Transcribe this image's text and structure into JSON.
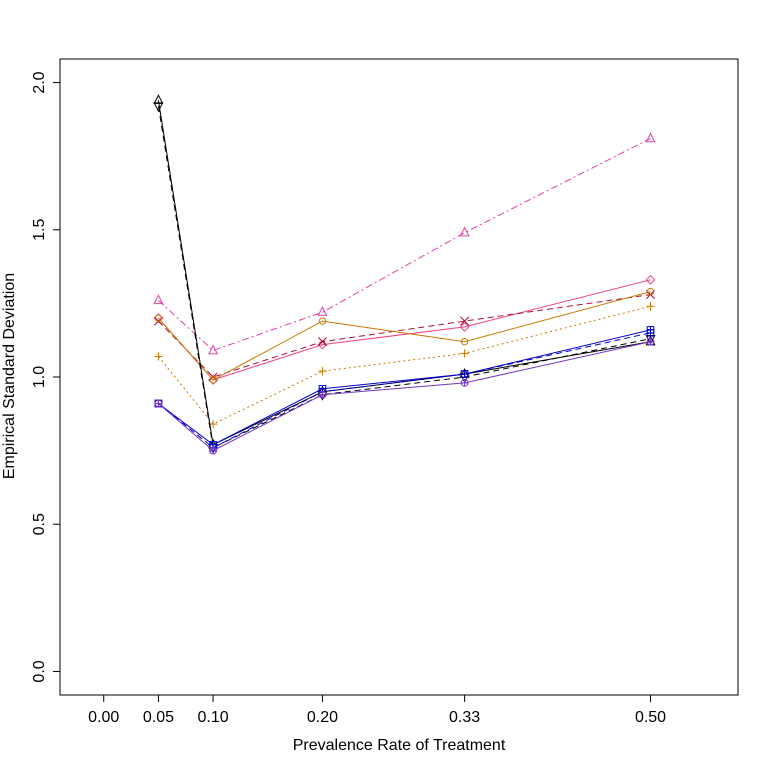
{
  "chart_data": {
    "type": "line",
    "title": "",
    "xlabel": "Prevalence Rate of Treatment",
    "ylabel": "Empirical Standard Deviation",
    "xlim": [
      -0.04,
      0.58
    ],
    "ylim": [
      -0.08,
      2.08
    ],
    "x_ticks": [
      0.0,
      0.05,
      0.1,
      0.2,
      0.33,
      0.5
    ],
    "x_tick_labels": [
      "0.00",
      "0.05",
      "0.10",
      "0.20",
      "0.33",
      "0.50"
    ],
    "y_ticks": [
      0.0,
      0.5,
      1.0,
      1.5,
      2.0
    ],
    "y_tick_labels": [
      "0.0",
      "0.5",
      "1.0",
      "1.5",
      "2.0"
    ],
    "x": [
      0.05,
      0.1,
      0.2,
      0.33,
      0.5
    ],
    "series": [
      {
        "name": "magenta-triangle",
        "color": "#dd44aa",
        "dash": "7,3,2,3",
        "marker": "triangle",
        "values": [
          1.26,
          1.09,
          1.22,
          1.49,
          1.81
        ]
      },
      {
        "name": "pink-diamond",
        "color": "#ee4488",
        "dash": "",
        "marker": "diamond",
        "values": [
          1.2,
          0.99,
          1.11,
          1.17,
          1.33
        ]
      },
      {
        "name": "darkred-x",
        "color": "#aa1133",
        "dash": "6,4",
        "marker": "x",
        "values": [
          1.19,
          1.0,
          1.12,
          1.19,
          1.28
        ]
      },
      {
        "name": "orange-circle",
        "color": "#cc7700",
        "dash": "",
        "marker": "circle",
        "values": [
          1.2,
          0.99,
          1.19,
          1.12,
          1.29
        ]
      },
      {
        "name": "orange-plus",
        "color": "#cc7700",
        "dash": "2,3",
        "marker": "plus",
        "values": [
          1.07,
          0.84,
          1.02,
          1.08,
          1.24
        ]
      },
      {
        "name": "black-triangle-up",
        "color": "#000000",
        "dash": "",
        "marker": "triangle",
        "values": [
          1.94,
          0.77,
          0.95,
          1.01,
          1.12
        ]
      },
      {
        "name": "black-triangle-down",
        "color": "#000000",
        "dash": "6,4",
        "marker": "triangle-down",
        "values": [
          1.92,
          0.76,
          0.94,
          1.0,
          1.13
        ]
      },
      {
        "name": "blue-square",
        "color": "#0000cc",
        "dash": "",
        "marker": "square-cross",
        "values": [
          0.91,
          0.77,
          0.96,
          1.01,
          1.16
        ]
      },
      {
        "name": "blue-square-2",
        "color": "#0000cc",
        "dash": "6,4",
        "marker": "square-cross",
        "values": [
          0.91,
          0.76,
          0.95,
          1.01,
          1.15
        ]
      },
      {
        "name": "purple-circle",
        "color": "#7733cc",
        "dash": "",
        "marker": "circle-plus",
        "values": [
          0.91,
          0.75,
          0.94,
          0.98,
          1.12
        ]
      }
    ]
  }
}
